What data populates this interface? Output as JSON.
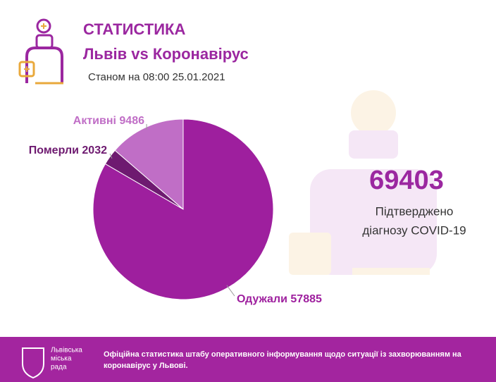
{
  "chart_data": {
    "type": "pie",
    "title": "СТАТИСТИКА",
    "subtitle": "Львів vs Коронавірус",
    "date": "Станом на 08:00 25.01.2021",
    "categories": [
      "Активні",
      "Померли",
      "Одужали"
    ],
    "values": [
      9486,
      2032,
      57885
    ],
    "colors": [
      "#c06ec6",
      "#6e1a70",
      "#9e1f9e"
    ],
    "total": 69403,
    "caption": [
      "Підтверджено",
      "діагнозу COVID-19"
    ]
  },
  "footer": {
    "logo": [
      "Львівська",
      "міська",
      "рада"
    ],
    "text": [
      "Офіційна статистика штабу оперативного інформування щодо ситуації із захворюванням на",
      "коронавірус у Львові."
    ]
  }
}
